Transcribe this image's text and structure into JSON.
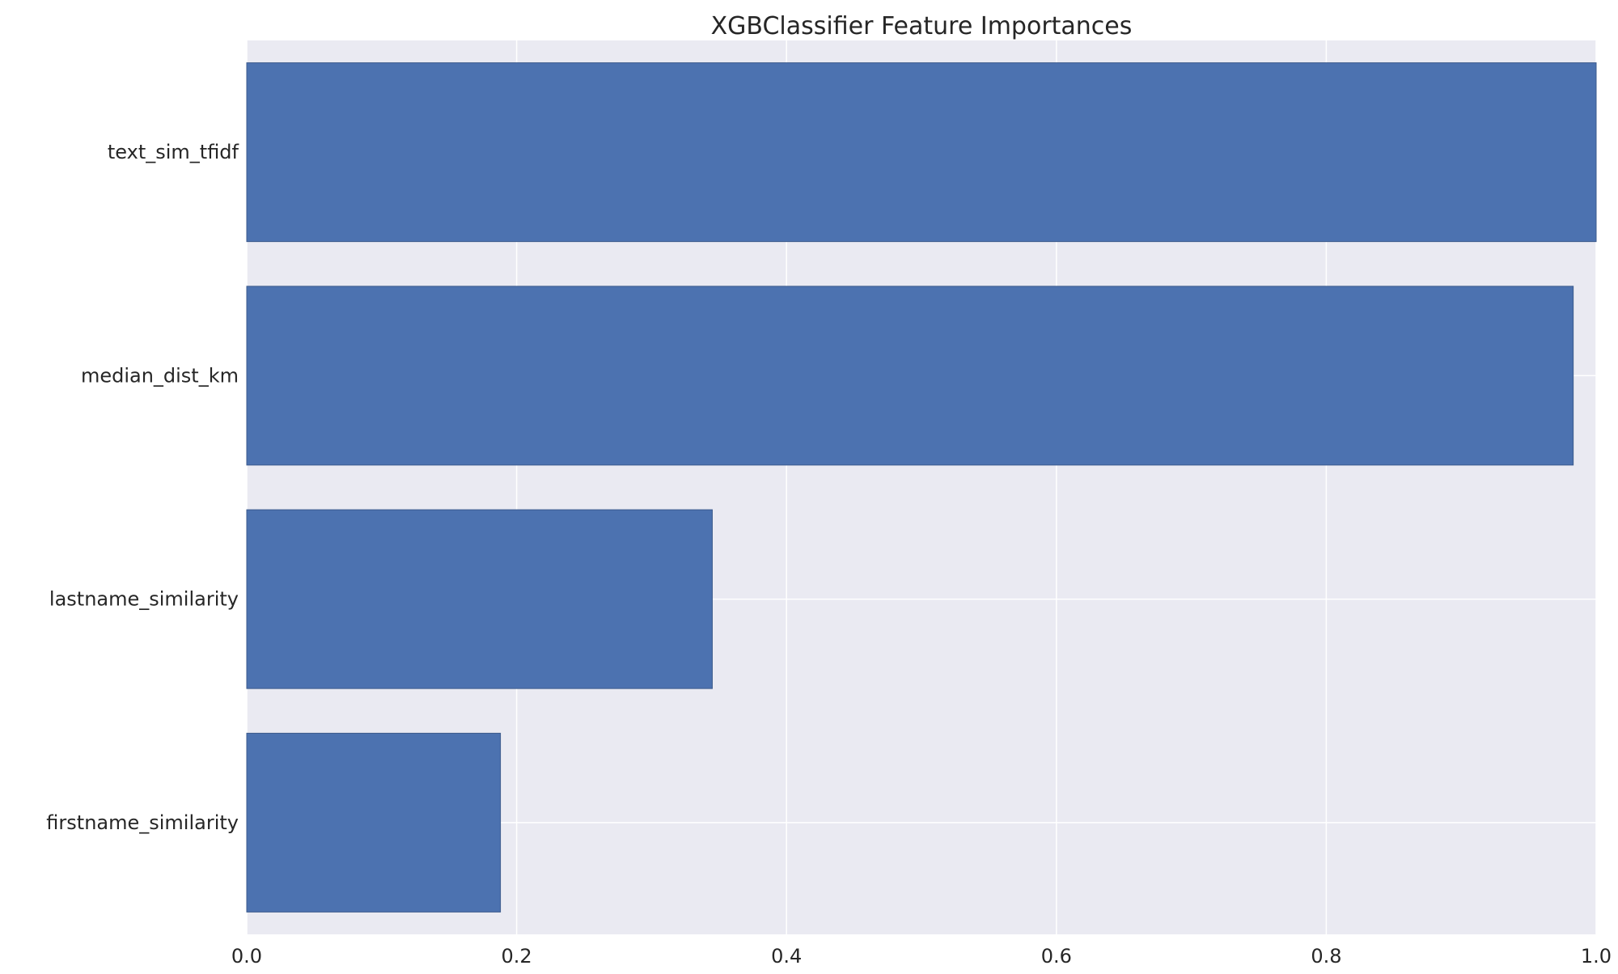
{
  "chart_data": {
    "type": "bar",
    "orientation": "horizontal",
    "title": "XGBClassifier Feature Importances",
    "xlabel": "",
    "ylabel": "",
    "categories": [
      "text_sim_tfidf",
      "median_dist_km",
      "lastname_similarity",
      "firstname_similarity"
    ],
    "values": [
      1.0,
      0.983,
      0.345,
      0.188
    ],
    "xlim": [
      0.0,
      1.0
    ],
    "xticks": [
      0.0,
      0.2,
      0.4,
      0.6,
      0.8,
      1.0
    ],
    "xtick_labels": [
      "0.0",
      "0.2",
      "0.4",
      "0.6",
      "0.8",
      "1.0"
    ],
    "grid": true,
    "legend": "none",
    "colors": {
      "bar": "#4c72b0",
      "bar_edge": "#3b5a8c",
      "plot_background": "#eaeaf2",
      "grid": "#ffffff",
      "text": "#262626"
    }
  }
}
